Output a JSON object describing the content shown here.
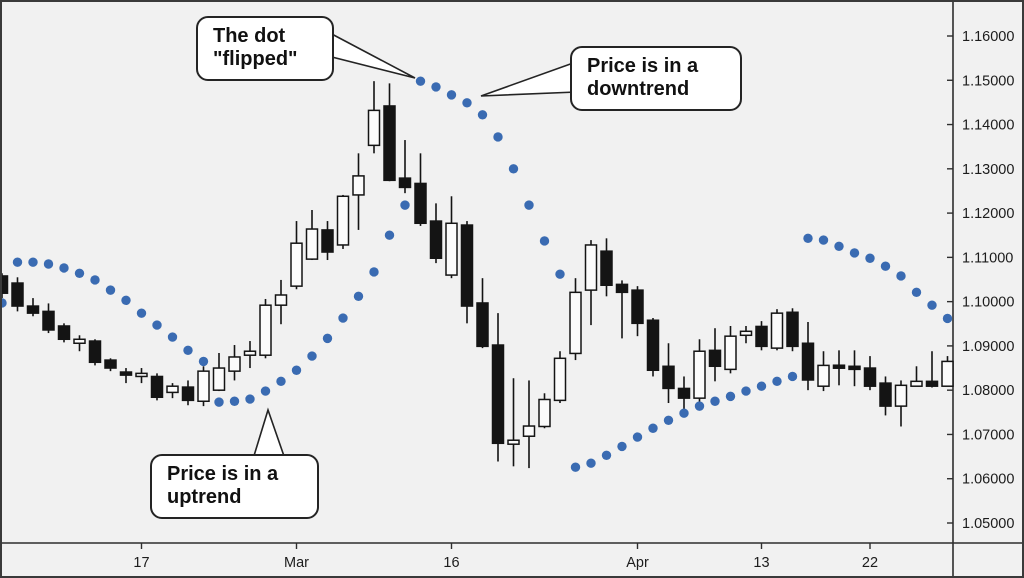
{
  "chart_data": {
    "type": "candlestick",
    "indicator": "parabolic-sar",
    "y_axis": {
      "min": 1.05,
      "max": 1.16,
      "step": 0.01,
      "labels": [
        "1.16000",
        "1.15000",
        "1.14000",
        "1.13000",
        "1.12000",
        "1.11000",
        "1.10000",
        "1.09000",
        "1.08000",
        "1.07000",
        "1.06000",
        "1.05000"
      ]
    },
    "x_axis": {
      "ticks": [
        {
          "label": "17",
          "index": 9
        },
        {
          "label": "Mar",
          "index": 19
        },
        {
          "label": "16",
          "index": 29
        },
        {
          "label": "Apr",
          "index": 41
        },
        {
          "label": "13",
          "index": 49
        },
        {
          "label": "22",
          "index": 56
        }
      ]
    },
    "candles_format": [
      "open",
      "high",
      "low",
      "close"
    ],
    "candles": [
      [
        1.1058,
        1.1064,
        1.1008,
        1.1019
      ],
      [
        1.1042,
        1.1055,
        1.0978,
        1.099
      ],
      [
        1.099,
        1.1008,
        1.0967,
        1.0974
      ],
      [
        1.0978,
        1.0996,
        1.0929,
        1.0936
      ],
      [
        1.0945,
        1.0951,
        1.0908,
        1.0915
      ],
      [
        1.0906,
        1.0924,
        1.0888,
        1.0915
      ],
      [
        1.0911,
        1.0915,
        1.0856,
        1.0863
      ],
      [
        1.0868,
        1.0872,
        1.0843,
        1.085
      ],
      [
        1.0841,
        1.085,
        1.0816,
        1.0834
      ],
      [
        1.0831,
        1.085,
        1.0816,
        1.0838
      ],
      [
        1.0831,
        1.0838,
        1.0777,
        1.0784
      ],
      [
        1.0795,
        1.0816,
        1.0782,
        1.0809
      ],
      [
        1.0807,
        1.0822,
        1.0766,
        1.0777
      ],
      [
        1.0775,
        1.0854,
        1.0764,
        1.0843
      ],
      [
        1.08,
        1.0884,
        1.0798,
        1.085
      ],
      [
        1.0843,
        1.0902,
        1.0822,
        1.0875
      ],
      [
        1.0879,
        1.0911,
        1.085,
        1.0888
      ],
      [
        1.0879,
        1.1006,
        1.0872,
        1.0992
      ],
      [
        1.0992,
        1.1049,
        1.0949,
        1.1015
      ],
      [
        1.1035,
        1.1182,
        1.1028,
        1.1132
      ],
      [
        1.1096,
        1.1207,
        1.1094,
        1.1164
      ],
      [
        1.1162,
        1.1182,
        1.1094,
        1.1112
      ],
      [
        1.1128,
        1.1241,
        1.1119,
        1.1238
      ],
      [
        1.1241,
        1.1335,
        1.1162,
        1.1284
      ],
      [
        1.1353,
        1.1498,
        1.1335,
        1.1432
      ],
      [
        1.1442,
        1.1493,
        1.1272,
        1.1274
      ],
      [
        1.1279,
        1.1365,
        1.1245,
        1.1258
      ],
      [
        1.1267,
        1.1335,
        1.1171,
        1.1177
      ],
      [
        1.1182,
        1.1222,
        1.1087,
        1.1098
      ],
      [
        1.106,
        1.1238,
        1.1053,
        1.1177
      ],
      [
        1.1173,
        1.1182,
        1.0951,
        1.099
      ],
      [
        1.0997,
        1.1053,
        1.0895,
        1.0899
      ],
      [
        1.0902,
        1.0974,
        1.0639,
        1.068
      ],
      [
        1.0678,
        1.0827,
        1.0628,
        1.0687
      ],
      [
        1.0696,
        1.0822,
        1.0624,
        1.0719
      ],
      [
        1.0718,
        1.0793,
        1.0714,
        1.0779
      ],
      [
        1.0777,
        1.0888,
        1.0771,
        1.0872
      ],
      [
        1.0883,
        1.1053,
        1.0868,
        1.1021
      ],
      [
        1.1026,
        1.1139,
        1.0947,
        1.1128
      ],
      [
        1.1114,
        1.1143,
        1.1012,
        1.1037
      ],
      [
        1.1039,
        1.1048,
        1.0917,
        1.1021
      ],
      [
        1.1026,
        1.1035,
        1.0922,
        1.0951
      ],
      [
        1.0958,
        1.0963,
        1.0831,
        1.0845
      ],
      [
        1.0854,
        1.0906,
        1.0771,
        1.0804
      ],
      [
        1.0804,
        1.0831,
        1.0752,
        1.0782
      ],
      [
        1.0782,
        1.0915,
        1.0759,
        1.0888
      ],
      [
        1.089,
        1.094,
        1.082,
        1.0854
      ],
      [
        1.0847,
        1.0945,
        1.0838,
        1.0922
      ],
      [
        1.0924,
        1.0945,
        1.0906,
        1.0933
      ],
      [
        1.0944,
        1.0956,
        1.089,
        1.0899
      ],
      [
        1.0895,
        1.0983,
        1.089,
        1.0974
      ],
      [
        1.0976,
        1.0985,
        1.0888,
        1.0899
      ],
      [
        1.0906,
        1.0954,
        1.08,
        1.0823
      ],
      [
        1.0809,
        1.0888,
        1.0798,
        1.0856
      ],
      [
        1.0856,
        1.089,
        1.0811,
        1.085
      ],
      [
        1.0854,
        1.089,
        1.0809,
        1.0847
      ],
      [
        1.085,
        1.0877,
        1.08,
        1.0809
      ],
      [
        1.0816,
        1.0831,
        1.0743,
        1.0764
      ],
      [
        1.0764,
        1.0822,
        1.0718,
        1.0811
      ],
      [
        1.0809,
        1.0854,
        1.0809,
        1.082
      ],
      [
        1.082,
        1.0888,
        1.0806,
        1.0809
      ],
      [
        1.0809,
        1.0877,
        1.0809,
        1.0865
      ]
    ],
    "sar_sequences": [
      {
        "side": "below",
        "start_index": 0,
        "values": [
          1.0997
        ]
      },
      {
        "side": "above",
        "start_index": 1,
        "values": [
          1.1089,
          1.1089,
          1.1085,
          1.1076,
          1.1064,
          1.1049,
          1.1026,
          1.1003,
          1.0974,
          1.0947,
          1.092,
          1.089,
          1.0865
        ]
      },
      {
        "side": "below",
        "start_index": 14,
        "values": [
          1.0773,
          1.0775,
          1.078,
          1.0798,
          1.082,
          1.0845,
          1.0877,
          1.0917,
          1.0963,
          1.1012,
          1.1067,
          1.115,
          1.1218
        ]
      },
      {
        "side": "above",
        "start_index": 27,
        "values": [
          1.1498,
          1.1485,
          1.1467,
          1.1449,
          1.1422,
          1.1372,
          1.13,
          1.1218,
          1.1137,
          1.1062
        ]
      },
      {
        "side": "below",
        "start_index": 37,
        "values": [
          1.0626,
          1.0635,
          1.0653,
          1.0673,
          1.0694,
          1.0714,
          1.0732,
          1.0748,
          1.0764,
          1.0775,
          1.0786,
          1.0798,
          1.0809,
          1.082,
          1.0831
        ]
      },
      {
        "side": "above",
        "start_index": 52,
        "values": [
          1.1143,
          1.1139,
          1.1125,
          1.111,
          1.1098,
          1.108,
          1.1058,
          1.1021,
          1.0992,
          1.0962
        ]
      }
    ]
  },
  "callouts": {
    "flipped": {
      "lines": [
        "The dot",
        "\"flipped\""
      ]
    },
    "downtrend": {
      "lines": [
        "Price is in a",
        "downtrend"
      ]
    },
    "uptrend": {
      "lines": [
        "Price is in a",
        "uptrend"
      ]
    }
  },
  "colors": {
    "background": "#f1f1f1",
    "frame_border": "#3a3a3a",
    "axis_line": "#2e2e2e",
    "axis_label": "#1c1c1c",
    "candle_up_fill": "#fbfbfb",
    "candle_down_fill": "#141414",
    "candle_outline": "#141414",
    "sar_dot": "#3a6bb2",
    "callout_bg": "#ffffff",
    "callout_border": "#242424"
  }
}
